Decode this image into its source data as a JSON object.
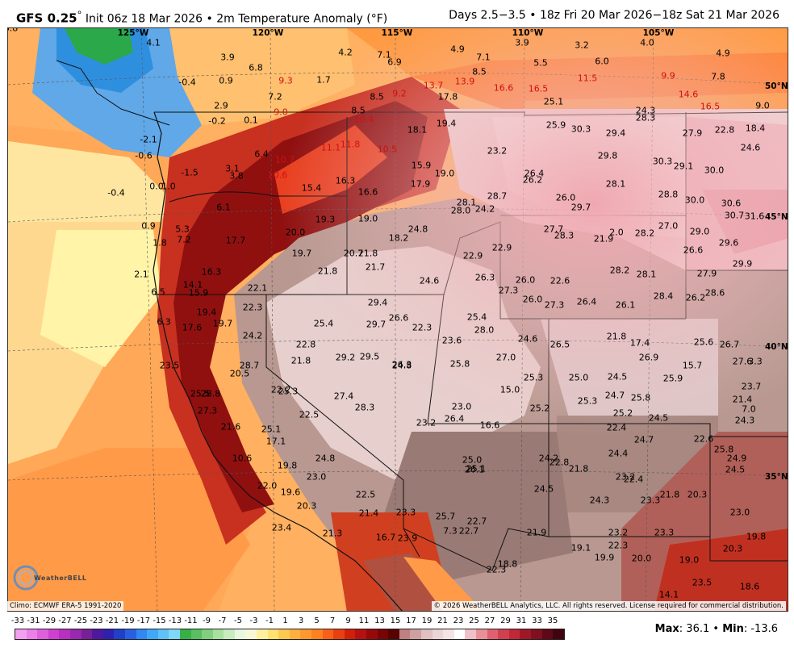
{
  "header": {
    "model": "GFS 0.25",
    "degree": "°",
    "init": "Init 06z 18 Mar 2026",
    "field": "2m Temperature Anomaly (°F)",
    "valid": "Days 2.5−3.5 • 18z Fri 20 Mar 2026−18z Sat 21 Mar 2026"
  },
  "lon_labels": [
    "125°W",
    "120°W",
    "115°W",
    "110°W",
    "105°W"
  ],
  "lat_labels": [
    "50°N",
    "45°N",
    "40°N",
    "35°N"
  ],
  "footer": {
    "climo": "Climo: ECMWF ERA-5 1991-2020",
    "copyright": "© 2026 WeatherBELL Analytics, LLC. All rights reserved. License required for commercial distribution.",
    "logo": "WeatherBELL",
    "max_label": "Max",
    "max_value": "36.1",
    "min_label": "Min",
    "min_value": "-13.6"
  },
  "scale_ticks": [
    "-33",
    "-31",
    "-29",
    "-27",
    "-25",
    "-23",
    "-21",
    "-19",
    "-17",
    "-15",
    "-13",
    "-11",
    "-9",
    "-7",
    "-5",
    "-3",
    "-1",
    "1",
    "3",
    "5",
    "7",
    "9",
    "11",
    "13",
    "15",
    "17",
    "19",
    "21",
    "23",
    "25",
    "27",
    "29",
    "31",
    "33",
    "35"
  ],
  "scale_colors": [
    "#f4a0f0",
    "#ec80e8",
    "#e060dc",
    "#d040d0",
    "#b830c0",
    "#9828b0",
    "#782098",
    "#5018a0",
    "#3020b0",
    "#2040c8",
    "#2860e0",
    "#3088f0",
    "#40a8f8",
    "#60c0f8",
    "#80d8f8",
    "#38b048",
    "#58c060",
    "#80d080",
    "#a8e0a0",
    "#c8ecc0",
    "#e8f8e0",
    "#f8f8d8",
    "#fff0a0",
    "#ffe070",
    "#ffc850",
    "#ffb040",
    "#ff9830",
    "#ff8020",
    "#f86018",
    "#e84010",
    "#d02008",
    "#b81010",
    "#980808",
    "#780404",
    "#580202",
    "#c08080",
    "#d0a0a0",
    "#e0c0c0",
    "#ecd4d4",
    "#f4e4e4",
    "#ffffff",
    "#f0c0c8",
    "#e89098",
    "#e06070",
    "#d04050",
    "#c02838",
    "#a01828",
    "#801020",
    "#600818",
    "#400410"
  ],
  "stations": [
    {
      "v": "4.1",
      "c": "k"
    },
    {
      "v": "3.9",
      "c": "k"
    },
    {
      "v": "6.8",
      "c": "k"
    },
    {
      "v": "4.2",
      "c": "k"
    },
    {
      "v": "7.1",
      "c": "k"
    },
    {
      "v": "6.9",
      "c": "k"
    },
    {
      "v": "4.9",
      "c": "k"
    },
    {
      "v": "7.1",
      "c": "k"
    },
    {
      "v": "3.9",
      "c": "k"
    },
    {
      "v": "3.2",
      "c": "k"
    },
    {
      "v": "4.0",
      "c": "k"
    },
    {
      "v": "4.9",
      "c": "k"
    },
    {
      "v": "5.5",
      "c": "k"
    },
    {
      "v": "6.0",
      "c": "k"
    },
    {
      "v": "8.5",
      "c": "k"
    },
    {
      "v": "7.8",
      "c": "k"
    },
    {
      "v": "-0.4",
      "c": "k"
    },
    {
      "v": "0.9",
      "c": "k"
    },
    {
      "v": "9.3",
      "c": "r"
    },
    {
      "v": "1.7",
      "c": "k"
    },
    {
      "v": "7.2",
      "c": "k"
    },
    {
      "v": "8.5",
      "c": "k"
    },
    {
      "v": "9.2",
      "c": "r"
    },
    {
      "v": "13.7",
      "c": "r"
    },
    {
      "v": "13.9",
      "c": "r"
    },
    {
      "v": "16.6",
      "c": "r"
    },
    {
      "v": "16.5",
      "c": "r"
    },
    {
      "v": "11.5",
      "c": "r"
    },
    {
      "v": "9.9",
      "c": "r"
    },
    {
      "v": "14.6",
      "c": "r"
    },
    {
      "v": "17.8",
      "c": "k"
    },
    {
      "v": "25.1",
      "c": "k"
    },
    {
      "v": "16.5",
      "c": "r"
    },
    {
      "v": "9.0",
      "c": "k"
    },
    {
      "v": "2.9",
      "c": "k"
    },
    {
      "v": "9.0",
      "c": "r"
    },
    {
      "v": "8.5",
      "c": "k"
    },
    {
      "v": "24.3",
      "c": "k"
    },
    {
      "v": "28.3",
      "c": "k"
    },
    {
      "v": "-0.2",
      "c": "k"
    },
    {
      "v": "0.1",
      "c": "k"
    },
    {
      "v": "10.4",
      "c": "r"
    },
    {
      "v": "19.4",
      "c": "k"
    },
    {
      "v": "25.9",
      "c": "k"
    },
    {
      "v": "30.3",
      "c": "k"
    },
    {
      "v": "29.4",
      "c": "k"
    },
    {
      "v": "27.9",
      "c": "k"
    },
    {
      "v": "22.8",
      "c": "k"
    },
    {
      "v": "18.4",
      "c": "k"
    },
    {
      "v": "18.1",
      "c": "k"
    },
    {
      "v": "-2.1",
      "c": "k"
    },
    {
      "v": "11.1",
      "c": "r"
    },
    {
      "v": "11.8",
      "c": "r"
    },
    {
      "v": "10.5",
      "c": "r"
    },
    {
      "v": "23.2",
      "c": "k"
    },
    {
      "v": "24.6",
      "c": "k"
    },
    {
      "v": "-0.6",
      "c": "k"
    },
    {
      "v": "6.4",
      "c": "k"
    },
    {
      "v": "10.7",
      "c": "r"
    },
    {
      "v": "29.8",
      "c": "k"
    },
    {
      "v": "30.3",
      "c": "k"
    },
    {
      "v": "29.1",
      "c": "k"
    },
    {
      "v": "30.0",
      "c": "k"
    },
    {
      "v": "3.1",
      "c": "k"
    },
    {
      "v": "15.9",
      "c": "k"
    },
    {
      "v": "19.0",
      "c": "k"
    },
    {
      "v": "-1.5",
      "c": "k"
    },
    {
      "v": "3.8",
      "c": "k"
    },
    {
      "v": "10.6",
      "c": "r"
    },
    {
      "v": "26.4",
      "c": "k"
    },
    {
      "v": "26.2",
      "c": "k"
    },
    {
      "v": "28.1",
      "c": "k"
    },
    {
      "v": "16.3",
      "c": "k"
    },
    {
      "v": "17.9",
      "c": "k"
    },
    {
      "v": "-0.4",
      "c": "k"
    },
    {
      "v": "0.0",
      "c": "k"
    },
    {
      "v": "1.0",
      "c": "k"
    },
    {
      "v": "15.4",
      "c": "k"
    },
    {
      "v": "16.6",
      "c": "k"
    },
    {
      "v": "28.7",
      "c": "k"
    },
    {
      "v": "26.0",
      "c": "k"
    },
    {
      "v": "28.8",
      "c": "k"
    },
    {
      "v": "30.0",
      "c": "k"
    },
    {
      "v": "30.6",
      "c": "k"
    },
    {
      "v": "6.1",
      "c": "k"
    },
    {
      "v": "28.1",
      "c": "k"
    },
    {
      "v": "24.2",
      "c": "k"
    },
    {
      "v": "28.0",
      "c": "k"
    },
    {
      "v": "29.7",
      "c": "k"
    },
    {
      "v": "30.7",
      "c": "k"
    },
    {
      "v": "31.6",
      "c": "k"
    },
    {
      "v": "19.3",
      "c": "k"
    },
    {
      "v": "19.0",
      "c": "k"
    },
    {
      "v": "0.9",
      "c": "k"
    },
    {
      "v": "5.3",
      "c": "k"
    },
    {
      "v": "20.0",
      "c": "k"
    },
    {
      "v": "24.8",
      "c": "k"
    },
    {
      "v": "27.7",
      "c": "k"
    },
    {
      "v": "28.3",
      "c": "k"
    },
    {
      "v": "21.9",
      "c": "k"
    },
    {
      "v": "2.0",
      "c": "k"
    },
    {
      "v": "28.2",
      "c": "k"
    },
    {
      "v": "27.0",
      "c": "k"
    },
    {
      "v": "29.0",
      "c": "k"
    },
    {
      "v": "1.8",
      "c": "k"
    },
    {
      "v": "7.2",
      "c": "k"
    },
    {
      "v": "17.7",
      "c": "k"
    },
    {
      "v": "18.2",
      "c": "k"
    },
    {
      "v": "29.6",
      "c": "k"
    },
    {
      "v": "19.7",
      "c": "k"
    },
    {
      "v": "20.7",
      "c": "k"
    },
    {
      "v": "21.8",
      "c": "k"
    },
    {
      "v": "22.9",
      "c": "k"
    },
    {
      "v": "22.9",
      "c": "k"
    },
    {
      "v": "26.6",
      "c": "k"
    },
    {
      "v": "29.9",
      "c": "k"
    },
    {
      "v": "21.7",
      "c": "k"
    },
    {
      "v": "16.3",
      "c": "k"
    },
    {
      "v": "21.8",
      "c": "k"
    },
    {
      "v": "28.2",
      "c": "k"
    },
    {
      "v": "28.1",
      "c": "k"
    },
    {
      "v": "27.9",
      "c": "k"
    },
    {
      "v": "2.1",
      "c": "k"
    },
    {
      "v": "24.6",
      "c": "k"
    },
    {
      "v": "26.3",
      "c": "k"
    },
    {
      "v": "26.0",
      "c": "k"
    },
    {
      "v": "22.6",
      "c": "k"
    },
    {
      "v": "14.1",
      "c": "k"
    },
    {
      "v": "26.0",
      "c": "k"
    },
    {
      "v": "28.6",
      "c": "k"
    },
    {
      "v": "6.5",
      "c": "k"
    },
    {
      "v": "15.9",
      "c": "k"
    },
    {
      "v": "22.1",
      "c": "k"
    },
    {
      "v": "28.4",
      "c": "k"
    },
    {
      "v": "26.2",
      "c": "k"
    },
    {
      "v": "29.4",
      "c": "k"
    },
    {
      "v": "27.3",
      "c": "k"
    },
    {
      "v": "27.3",
      "c": "k"
    },
    {
      "v": "26.4",
      "c": "k"
    },
    {
      "v": "26.1",
      "c": "k"
    },
    {
      "v": "22.3",
      "c": "k"
    },
    {
      "v": "19.4",
      "c": "k"
    },
    {
      "v": "26.6",
      "c": "k"
    },
    {
      "v": "25.4",
      "c": "k"
    },
    {
      "v": "6.3",
      "c": "k"
    },
    {
      "v": "17.6",
      "c": "k"
    },
    {
      "v": "19.7",
      "c": "k"
    },
    {
      "v": "25.4",
      "c": "k"
    },
    {
      "v": "29.7",
      "c": "k"
    },
    {
      "v": "22.3",
      "c": "k"
    },
    {
      "v": "28.0",
      "c": "k"
    },
    {
      "v": "24.2",
      "c": "k"
    },
    {
      "v": "24.6",
      "c": "k"
    },
    {
      "v": "23.6",
      "c": "k"
    },
    {
      "v": "21.8",
      "c": "k"
    },
    {
      "v": "17.4",
      "c": "k"
    },
    {
      "v": "25.6",
      "c": "k"
    },
    {
      "v": "26.7",
      "c": "k"
    },
    {
      "v": "26.5",
      "c": "k"
    },
    {
      "v": "22.8",
      "c": "k"
    },
    {
      "v": "29.2",
      "c": "k"
    },
    {
      "v": "29.5",
      "c": "k"
    },
    {
      "v": "26.3",
      "c": "k"
    },
    {
      "v": "26.9",
      "c": "k"
    },
    {
      "v": "27.0",
      "c": "k"
    },
    {
      "v": "27.6",
      "c": "k"
    },
    {
      "v": "3.3",
      "c": "k"
    },
    {
      "v": "23.5",
      "c": "k"
    },
    {
      "v": "21.8",
      "c": "k"
    },
    {
      "v": "28.7",
      "c": "k"
    },
    {
      "v": "24.8",
      "c": "k"
    },
    {
      "v": "25.8",
      "c": "k"
    },
    {
      "v": "15.7",
      "c": "k"
    },
    {
      "v": "20.5",
      "c": "k"
    },
    {
      "v": "25.3",
      "c": "k"
    },
    {
      "v": "25.0",
      "c": "k"
    },
    {
      "v": "24.5",
      "c": "k"
    },
    {
      "v": "25.9",
      "c": "k"
    },
    {
      "v": "23.7",
      "c": "k"
    },
    {
      "v": "22.2",
      "c": "k"
    },
    {
      "v": "15.0",
      "c": "k"
    },
    {
      "v": "25.5",
      "c": "k"
    },
    {
      "v": "27.4",
      "c": "k"
    },
    {
      "v": "25.3",
      "c": "k"
    },
    {
      "v": "24.7",
      "c": "k"
    },
    {
      "v": "25.8",
      "c": "k"
    },
    {
      "v": "21.4",
      "c": "k"
    },
    {
      "v": "25.3",
      "c": "k"
    },
    {
      "v": "28.3",
      "c": "k"
    },
    {
      "v": "23.0",
      "c": "k"
    },
    {
      "v": "25.2",
      "c": "k"
    },
    {
      "v": "7.0",
      "c": "k"
    },
    {
      "v": "28.8",
      "c": "k"
    },
    {
      "v": "27.3",
      "c": "k"
    },
    {
      "v": "22.5",
      "c": "k"
    },
    {
      "v": "26.4",
      "c": "k"
    },
    {
      "v": "25.2",
      "c": "k"
    },
    {
      "v": "24.5",
      "c": "k"
    },
    {
      "v": "24.3",
      "c": "k"
    },
    {
      "v": "23.2",
      "c": "k"
    },
    {
      "v": "16.6",
      "c": "k"
    },
    {
      "v": "21.6",
      "c": "k"
    },
    {
      "v": "25.1",
      "c": "k"
    },
    {
      "v": "22.4",
      "c": "k"
    },
    {
      "v": "17.1",
      "c": "k"
    },
    {
      "v": "24.7",
      "c": "k"
    },
    {
      "v": "22.6",
      "c": "k"
    },
    {
      "v": "25.8",
      "c": "k"
    },
    {
      "v": "24.9",
      "c": "k"
    },
    {
      "v": "10.6",
      "c": "k"
    },
    {
      "v": "24.8",
      "c": "k"
    },
    {
      "v": "25.0",
      "c": "k"
    },
    {
      "v": "24.2",
      "c": "k"
    },
    {
      "v": "22.8",
      "c": "k"
    },
    {
      "v": "24.4",
      "c": "k"
    },
    {
      "v": "24.5",
      "c": "k"
    },
    {
      "v": "19.8",
      "c": "k"
    },
    {
      "v": "25.1",
      "c": "k"
    },
    {
      "v": "26.1",
      "c": "k"
    },
    {
      "v": "21.8",
      "c": "k"
    },
    {
      "v": "23.0",
      "c": "k"
    },
    {
      "v": "23.2",
      "c": "k"
    },
    {
      "v": "22.0",
      "c": "k"
    },
    {
      "v": "24.5",
      "c": "k"
    },
    {
      "v": "19.6",
      "c": "k"
    },
    {
      "v": "22.5",
      "c": "k"
    },
    {
      "v": "22.4",
      "c": "k"
    },
    {
      "v": "24.3",
      "c": "k"
    },
    {
      "v": "21.8",
      "c": "k"
    },
    {
      "v": "20.3",
      "c": "k"
    },
    {
      "v": "23.3",
      "c": "k"
    },
    {
      "v": "20.3",
      "c": "k"
    },
    {
      "v": "21.4",
      "c": "k"
    },
    {
      "v": "23.3",
      "c": "k"
    },
    {
      "v": "25.7",
      "c": "k"
    },
    {
      "v": "22.7",
      "c": "k"
    },
    {
      "v": "23.0",
      "c": "k"
    },
    {
      "v": "23.4",
      "c": "k"
    },
    {
      "v": "7.3",
      "c": "k"
    },
    {
      "v": "22.7",
      "c": "k"
    },
    {
      "v": "21.9",
      "c": "k"
    },
    {
      "v": "23.2",
      "c": "k"
    },
    {
      "v": "23.3",
      "c": "k"
    },
    {
      "v": "19.8",
      "c": "k"
    },
    {
      "v": "21.3",
      "c": "k"
    },
    {
      "v": "16.7",
      "c": "k"
    },
    {
      "v": "23.9",
      "c": "k"
    },
    {
      "v": "22.3",
      "c": "k"
    },
    {
      "v": "19.1",
      "c": "k"
    },
    {
      "v": "20.3",
      "c": "k"
    },
    {
      "v": "19.9",
      "c": "k"
    },
    {
      "v": "20.0",
      "c": "k"
    },
    {
      "v": "19.0",
      "c": "k"
    },
    {
      "v": "18.8",
      "c": "k"
    },
    {
      "v": "22.3",
      "c": "k"
    },
    {
      "v": "23.5",
      "c": "k"
    },
    {
      "v": "18.6",
      "c": "k"
    },
    {
      "v": "14.1",
      "c": "k"
    },
    {
      "v": "16.8",
      "c": "k"
    }
  ]
}
